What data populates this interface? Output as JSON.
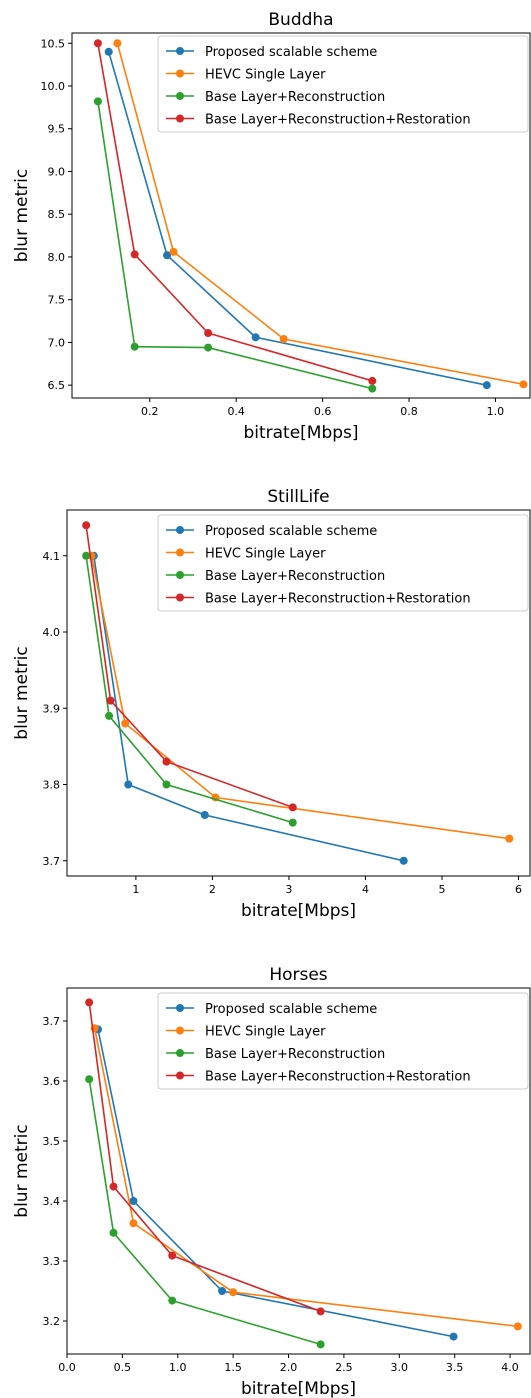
{
  "chart_data": [
    {
      "type": "line",
      "title": "Buddha",
      "xlabel": "bitrate[Mbps]",
      "ylabel": "blur metric",
      "xlim": [
        0.02,
        1.08
      ],
      "ylim": [
        6.35,
        10.62
      ],
      "xticks": [
        0.2,
        0.4,
        0.6,
        0.8,
        1.0
      ],
      "xtick_labels": [
        "0.2",
        "0.4",
        "0.6",
        "0.8",
        "1.0"
      ],
      "yticks": [
        6.5,
        7.0,
        7.5,
        8.0,
        8.5,
        9.0,
        9.5,
        10.0,
        10.5
      ],
      "ytick_labels": [
        "6.5",
        "7.0",
        "7.5",
        "8.0",
        "8.5",
        "9.0",
        "9.5",
        "10.0",
        "10.5"
      ],
      "legend_position": "top-right",
      "series": [
        {
          "name": "Proposed scalable scheme",
          "color": "#1f77b4",
          "x": [
            0.105,
            0.24,
            0.445,
            0.98
          ],
          "y": [
            10.4,
            8.02,
            7.06,
            6.5
          ]
        },
        {
          "name": "HEVC Single Layer",
          "color": "#ff7f0e",
          "x": [
            0.125,
            0.255,
            0.51,
            1.065
          ],
          "y": [
            10.5,
            8.06,
            7.04,
            6.51
          ]
        },
        {
          "name": "Base Layer+Reconstruction",
          "color": "#2ca02c",
          "x": [
            0.08,
            0.165,
            0.335,
            0.715
          ],
          "y": [
            9.82,
            6.95,
            6.94,
            6.46
          ]
        },
        {
          "name": "Base Layer+Reconstruction+Restoration",
          "color": "#d62728",
          "x": [
            0.08,
            0.165,
            0.335,
            0.715
          ],
          "y": [
            10.5,
            8.03,
            7.11,
            6.55
          ]
        }
      ]
    },
    {
      "type": "line",
      "title": "StillLife",
      "xlabel": "bitrate[Mbps]",
      "ylabel": "blur metric",
      "xlim": [
        0.1,
        6.15
      ],
      "ylim": [
        3.68,
        4.16
      ],
      "xticks": [
        1,
        2,
        3,
        4,
        5,
        6
      ],
      "xtick_labels": [
        "1",
        "2",
        "3",
        "4",
        "5",
        "6"
      ],
      "yticks": [
        3.7,
        3.8,
        3.9,
        4.0,
        4.1
      ],
      "ytick_labels": [
        "3.7",
        "3.8",
        "3.9",
        "4.0",
        "4.1"
      ],
      "legend_position": "top-right",
      "series": [
        {
          "name": "Proposed scalable scheme",
          "color": "#1f77b4",
          "x": [
            0.45,
            0.9,
            1.9,
            4.5
          ],
          "y": [
            4.1,
            3.8,
            3.76,
            3.7
          ]
        },
        {
          "name": "HEVC Single Layer",
          "color": "#ff7f0e",
          "x": [
            0.42,
            0.86,
            2.04,
            5.88
          ],
          "y": [
            4.1,
            3.88,
            3.783,
            3.729
          ]
        },
        {
          "name": "Base Layer+Reconstruction",
          "color": "#2ca02c",
          "x": [
            0.35,
            0.65,
            1.4,
            3.05
          ],
          "y": [
            4.1,
            3.89,
            3.8,
            3.75
          ]
        },
        {
          "name": "Base Layer+Reconstruction+Restoration",
          "color": "#d62728",
          "x": [
            0.35,
            0.67,
            1.4,
            3.05
          ],
          "y": [
            4.14,
            3.91,
            3.83,
            3.77
          ]
        }
      ]
    },
    {
      "type": "line",
      "title": "Horses",
      "xlabel": "bitrate[Mbps]",
      "ylabel": "blur metric",
      "xlim": [
        0.0,
        4.18
      ],
      "ylim": [
        3.145,
        3.755
      ],
      "xticks": [
        0.0,
        0.5,
        1.0,
        1.5,
        2.0,
        2.5,
        3.0,
        3.5,
        4.0
      ],
      "xtick_labels": [
        "0.0",
        "0.5",
        "1.0",
        "1.5",
        "2.0",
        "2.5",
        "3.0",
        "3.5",
        "4.0"
      ],
      "yticks": [
        3.2,
        3.3,
        3.4,
        3.5,
        3.6,
        3.7
      ],
      "ytick_labels": [
        "3.2",
        "3.3",
        "3.4",
        "3.5",
        "3.6",
        "3.7"
      ],
      "legend_position": "top-right",
      "series": [
        {
          "name": "Proposed scalable scheme",
          "color": "#1f77b4",
          "x": [
            0.28,
            0.6,
            1.4,
            3.49
          ],
          "y": [
            3.686,
            3.4,
            3.25,
            3.174
          ]
        },
        {
          "name": "HEVC Single Layer",
          "color": "#ff7f0e",
          "x": [
            0.25,
            0.6,
            1.5,
            4.07
          ],
          "y": [
            3.688,
            3.363,
            3.248,
            3.191
          ]
        },
        {
          "name": "Base Layer+Reconstruction",
          "color": "#2ca02c",
          "x": [
            0.2,
            0.42,
            0.95,
            2.29
          ],
          "y": [
            3.603,
            3.347,
            3.234,
            3.161
          ]
        },
        {
          "name": "Base Layer+Reconstruction+Restoration",
          "color": "#d62728",
          "x": [
            0.2,
            0.42,
            0.95,
            2.29
          ],
          "y": [
            3.731,
            3.424,
            3.309,
            3.216
          ]
        }
      ]
    }
  ]
}
